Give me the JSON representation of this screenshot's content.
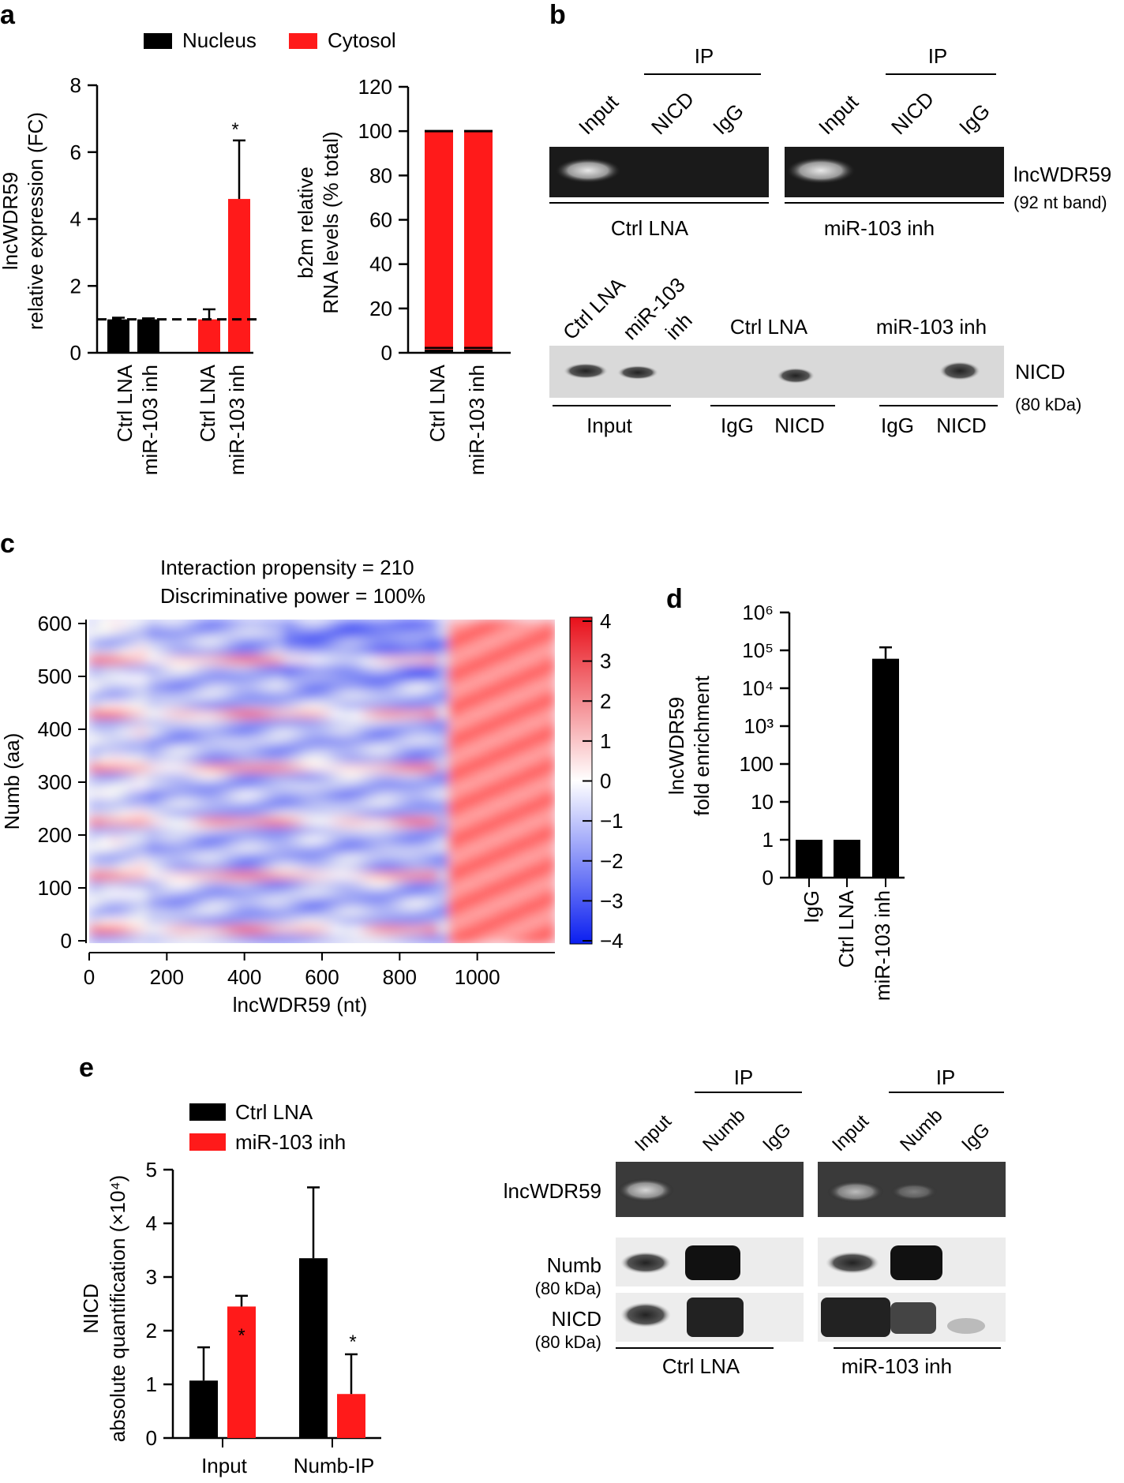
{
  "panels": {
    "a": "a",
    "b": "b",
    "c": "c",
    "d": "d",
    "e": "e"
  },
  "panel_a": {
    "legend": {
      "nucleus": "Nucleus",
      "cytosol": "Cytosol"
    },
    "colors": {
      "nucleus": "#000000",
      "cytosol": "#ff1a1a"
    }
  },
  "panel_b": {
    "ip": "IP",
    "lanes_top": [
      "Input",
      "NICD",
      "IgG"
    ],
    "group_ctrl": "Ctrl LNA",
    "group_mir": "miR-103 inh",
    "band_label": "lncWDR59",
    "band_sub": "(92 nt band)",
    "wb_lanes_input": [
      "Ctrl LNA",
      "miR-103",
      "inh"
    ],
    "wb_ctrl": "Ctrl LNA",
    "wb_mir": "miR-103 inh",
    "wb_label": "NICD",
    "wb_sub": "(80 kDa)",
    "wb_input": "Input",
    "wb_igg": "IgG",
    "wb_nicd": "NICD"
  },
  "panel_c": {
    "line1": "Interaction propensity = 210",
    "line2": "Discriminative power = 100%",
    "xlabel": "lncWDR59 (nt)",
    "ylabel": "Numb (aa)",
    "xticks": [
      "0",
      "200",
      "400",
      "600",
      "800",
      "1000"
    ],
    "yticks": [
      "0",
      "100",
      "200",
      "300",
      "400",
      "500",
      "600"
    ],
    "cbar_ticks": [
      "4",
      "3",
      "2",
      "1",
      "0",
      "−1",
      "−2",
      "−3",
      "−4"
    ]
  },
  "panel_e": {
    "ip": "IP",
    "lanes": [
      "Input",
      "Numb",
      "IgG"
    ],
    "row_rna": "lncWDR59",
    "row_numb": "Numb",
    "row_numb_sub": "(80 kDa)",
    "row_nicd": "NICD",
    "row_nicd_sub": "(80 kDa)",
    "group_ctrl": "Ctrl LNA",
    "group_mir": "miR-103 inh"
  },
  "chart_data": [
    {
      "id": "a-left",
      "type": "bar",
      "title": "",
      "ylabel_line1": "lncWDR59",
      "ylabel_line2": "relative expression (FC)",
      "ylim": [
        0,
        8
      ],
      "yticks": [
        "0",
        "2",
        "4",
        "6",
        "8"
      ],
      "categories": [
        "Ctrl LNA",
        "miR-103 inh",
        "Ctrl LNA",
        "miR-103 inh"
      ],
      "series": [
        {
          "name": "Nucleus",
          "values": [
            1.0,
            1.0,
            null,
            null
          ],
          "errors": [
            0.05,
            0.03,
            null,
            null
          ]
        },
        {
          "name": "Cytosol",
          "values": [
            null,
            null,
            1.0,
            4.6
          ],
          "errors": [
            null,
            null,
            0.3,
            1.75
          ]
        }
      ],
      "reference_line": 1.0,
      "annotations": [
        "*"
      ]
    },
    {
      "id": "a-right",
      "type": "bar",
      "ylabel_line1": "b2m relative",
      "ylabel_line2": "RNA levels (% total)",
      "ylim": [
        0,
        120
      ],
      "yticks": [
        "0",
        "20",
        "40",
        "60",
        "80",
        "100",
        "120"
      ],
      "categories": [
        "Ctrl LNA",
        "miR-103 inh"
      ],
      "series": [
        {
          "name": "Nucleus",
          "values": [
            1.5,
            1.5
          ]
        },
        {
          "name": "Cytosol",
          "values": [
            98.5,
            98.5
          ]
        }
      ]
    },
    {
      "id": "c",
      "type": "heatmap",
      "xlim": [
        0,
        1200
      ],
      "ylim": [
        0,
        600
      ],
      "color_range": [
        -4,
        4
      ]
    },
    {
      "id": "d",
      "type": "bar",
      "ylabel_line1": "lncWDR59",
      "ylabel_line2": "fold enrichment",
      "scale": "log",
      "yticks": [
        "0",
        "1",
        "10",
        "100",
        "10³",
        "10⁴",
        "10⁵",
        "10⁶"
      ],
      "categories": [
        "IgG",
        "Ctrl LNA",
        "miR-103 inh"
      ],
      "values": [
        1,
        1,
        60000
      ],
      "errors": [
        null,
        null,
        60000
      ]
    },
    {
      "id": "e",
      "type": "bar",
      "ylabel_line1": "NICD",
      "ylabel_line2": "absolute quantification (×10⁴)",
      "ylim": [
        0,
        5
      ],
      "yticks": [
        "0",
        "1",
        "2",
        "3",
        "4",
        "5"
      ],
      "categories": [
        "Input",
        "Numb-IP"
      ],
      "series": [
        {
          "name": "Ctrl LNA",
          "values": [
            1.07,
            3.35
          ],
          "errors": [
            0.62,
            1.32
          ]
        },
        {
          "name": "miR-103 inh",
          "values": [
            2.45,
            0.82
          ],
          "errors": [
            0.2,
            0.74
          ]
        }
      ],
      "annotations": [
        "*",
        "*"
      ]
    }
  ]
}
